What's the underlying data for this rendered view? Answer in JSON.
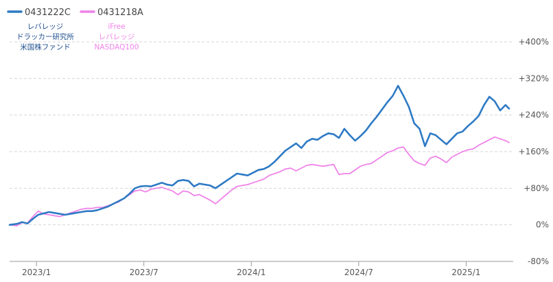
{
  "chart_data": {
    "type": "line",
    "yunit": "percent",
    "ylim": [
      -80,
      400
    ],
    "y_ticks": [
      {
        "value": 400,
        "label": "+400%"
      },
      {
        "value": 320,
        "label": "+320%"
      },
      {
        "value": 240,
        "label": "+240%"
      },
      {
        "value": 160,
        "label": "+160%"
      },
      {
        "value": 80,
        "label": "+80%"
      },
      {
        "value": 0,
        "label": "0%"
      },
      {
        "value": -80,
        "label": "-80%"
      }
    ],
    "x_ticks": [
      "2023/1",
      "2023/7",
      "2024/1",
      "2024/7",
      "2025/1"
    ],
    "x_tick_positions": [
      0.3,
      6.3,
      12.3,
      18.3,
      24.3
    ],
    "x_range": [
      -1.2,
      26.7
    ],
    "grid": true,
    "legend": "top-left",
    "series": [
      {
        "name": "0431222C",
        "name_lines": [
          "レバレッジ",
          "ドラッカー研究所",
          "米国株ファンド"
        ],
        "color": "#2e7ac4",
        "points": [
          [
            -1.2,
            0
          ],
          [
            -0.8,
            2
          ],
          [
            -0.5,
            6
          ],
          [
            -0.2,
            3
          ],
          [
            0.1,
            13
          ],
          [
            0.4,
            22
          ],
          [
            0.7,
            25
          ],
          [
            1.0,
            28
          ],
          [
            1.3,
            26
          ],
          [
            1.6,
            24
          ],
          [
            1.9,
            22
          ],
          [
            2.2,
            24
          ],
          [
            2.5,
            26
          ],
          [
            2.8,
            28
          ],
          [
            3.1,
            30
          ],
          [
            3.4,
            30
          ],
          [
            3.7,
            32
          ],
          [
            4.0,
            36
          ],
          [
            4.3,
            40
          ],
          [
            4.6,
            46
          ],
          [
            4.9,
            52
          ],
          [
            5.2,
            58
          ],
          [
            5.5,
            68
          ],
          [
            5.8,
            80
          ],
          [
            6.1,
            84
          ],
          [
            6.4,
            85
          ],
          [
            6.7,
            84
          ],
          [
            7.0,
            88
          ],
          [
            7.3,
            92
          ],
          [
            7.6,
            88
          ],
          [
            7.9,
            86
          ],
          [
            8.2,
            96
          ],
          [
            8.5,
            98
          ],
          [
            8.8,
            96
          ],
          [
            9.1,
            84
          ],
          [
            9.4,
            90
          ],
          [
            9.7,
            88
          ],
          [
            10.0,
            86
          ],
          [
            10.3,
            80
          ],
          [
            10.6,
            88
          ],
          [
            10.9,
            96
          ],
          [
            11.2,
            104
          ],
          [
            11.5,
            112
          ],
          [
            11.8,
            110
          ],
          [
            12.1,
            108
          ],
          [
            12.4,
            114
          ],
          [
            12.7,
            120
          ],
          [
            13.0,
            122
          ],
          [
            13.3,
            128
          ],
          [
            13.6,
            138
          ],
          [
            13.9,
            150
          ],
          [
            14.2,
            162
          ],
          [
            14.5,
            170
          ],
          [
            14.8,
            178
          ],
          [
            15.1,
            168
          ],
          [
            15.4,
            182
          ],
          [
            15.7,
            188
          ],
          [
            16.0,
            186
          ],
          [
            16.3,
            194
          ],
          [
            16.6,
            200
          ],
          [
            16.9,
            198
          ],
          [
            17.2,
            190
          ],
          [
            17.5,
            210
          ],
          [
            17.8,
            196
          ],
          [
            18.1,
            184
          ],
          [
            18.4,
            194
          ],
          [
            18.7,
            206
          ],
          [
            19.0,
            222
          ],
          [
            19.3,
            236
          ],
          [
            19.6,
            252
          ],
          [
            19.9,
            268
          ],
          [
            20.2,
            282
          ],
          [
            20.5,
            304
          ],
          [
            20.8,
            282
          ],
          [
            21.1,
            258
          ],
          [
            21.4,
            222
          ],
          [
            21.7,
            210
          ],
          [
            22.0,
            172
          ],
          [
            22.3,
            200
          ],
          [
            22.6,
            196
          ],
          [
            22.9,
            186
          ],
          [
            23.2,
            176
          ],
          [
            23.5,
            188
          ],
          [
            23.8,
            200
          ],
          [
            24.1,
            204
          ],
          [
            24.4,
            216
          ],
          [
            24.7,
            226
          ],
          [
            25.0,
            238
          ],
          [
            25.3,
            262
          ],
          [
            25.6,
            280
          ],
          [
            25.9,
            270
          ],
          [
            26.2,
            250
          ],
          [
            26.5,
            262
          ],
          [
            26.7,
            254
          ]
        ]
      },
      {
        "name": "0431218A",
        "name_lines": [
          "iFree",
          "レバレッジ",
          "NASDAQ100"
        ],
        "color": "#ef82e8",
        "points": [
          [
            -1.2,
            0
          ],
          [
            -0.8,
            -2
          ],
          [
            -0.5,
            5
          ],
          [
            -0.2,
            4
          ],
          [
            0.1,
            18
          ],
          [
            0.4,
            30
          ],
          [
            0.7,
            24
          ],
          [
            1.0,
            22
          ],
          [
            1.3,
            20
          ],
          [
            1.6,
            18
          ],
          [
            1.9,
            22
          ],
          [
            2.2,
            26
          ],
          [
            2.5,
            30
          ],
          [
            2.8,
            34
          ],
          [
            3.1,
            36
          ],
          [
            3.4,
            36
          ],
          [
            3.7,
            38
          ],
          [
            4.0,
            38
          ],
          [
            4.3,
            42
          ],
          [
            4.6,
            46
          ],
          [
            4.9,
            50
          ],
          [
            5.2,
            58
          ],
          [
            5.5,
            66
          ],
          [
            5.8,
            74
          ],
          [
            6.1,
            76
          ],
          [
            6.4,
            72
          ],
          [
            6.7,
            78
          ],
          [
            7.0,
            80
          ],
          [
            7.3,
            82
          ],
          [
            7.6,
            78
          ],
          [
            7.9,
            74
          ],
          [
            8.2,
            66
          ],
          [
            8.5,
            74
          ],
          [
            8.8,
            72
          ],
          [
            9.1,
            64
          ],
          [
            9.4,
            66
          ],
          [
            9.7,
            60
          ],
          [
            10.0,
            54
          ],
          [
            10.3,
            46
          ],
          [
            10.6,
            56
          ],
          [
            10.9,
            66
          ],
          [
            11.2,
            76
          ],
          [
            11.5,
            84
          ],
          [
            11.8,
            86
          ],
          [
            12.1,
            88
          ],
          [
            12.4,
            92
          ],
          [
            12.7,
            96
          ],
          [
            13.0,
            100
          ],
          [
            13.3,
            108
          ],
          [
            13.6,
            112
          ],
          [
            13.9,
            116
          ],
          [
            14.2,
            122
          ],
          [
            14.5,
            124
          ],
          [
            14.8,
            118
          ],
          [
            15.1,
            124
          ],
          [
            15.4,
            130
          ],
          [
            15.7,
            132
          ],
          [
            16.0,
            130
          ],
          [
            16.3,
            128
          ],
          [
            16.6,
            130
          ],
          [
            16.9,
            132
          ],
          [
            17.2,
            110
          ],
          [
            17.5,
            112
          ],
          [
            17.8,
            112
          ],
          [
            18.1,
            120
          ],
          [
            18.4,
            128
          ],
          [
            18.7,
            132
          ],
          [
            19.0,
            134
          ],
          [
            19.3,
            142
          ],
          [
            19.6,
            150
          ],
          [
            19.9,
            158
          ],
          [
            20.2,
            162
          ],
          [
            20.5,
            168
          ],
          [
            20.8,
            170
          ],
          [
            21.1,
            154
          ],
          [
            21.4,
            140
          ],
          [
            21.7,
            134
          ],
          [
            22.0,
            130
          ],
          [
            22.3,
            146
          ],
          [
            22.6,
            150
          ],
          [
            22.9,
            144
          ],
          [
            23.2,
            136
          ],
          [
            23.5,
            148
          ],
          [
            23.8,
            154
          ],
          [
            24.1,
            160
          ],
          [
            24.4,
            164
          ],
          [
            24.7,
            166
          ],
          [
            25.0,
            174
          ],
          [
            25.3,
            180
          ],
          [
            25.6,
            186
          ],
          [
            25.9,
            192
          ],
          [
            26.2,
            188
          ],
          [
            26.5,
            184
          ],
          [
            26.7,
            180
          ]
        ]
      }
    ]
  }
}
